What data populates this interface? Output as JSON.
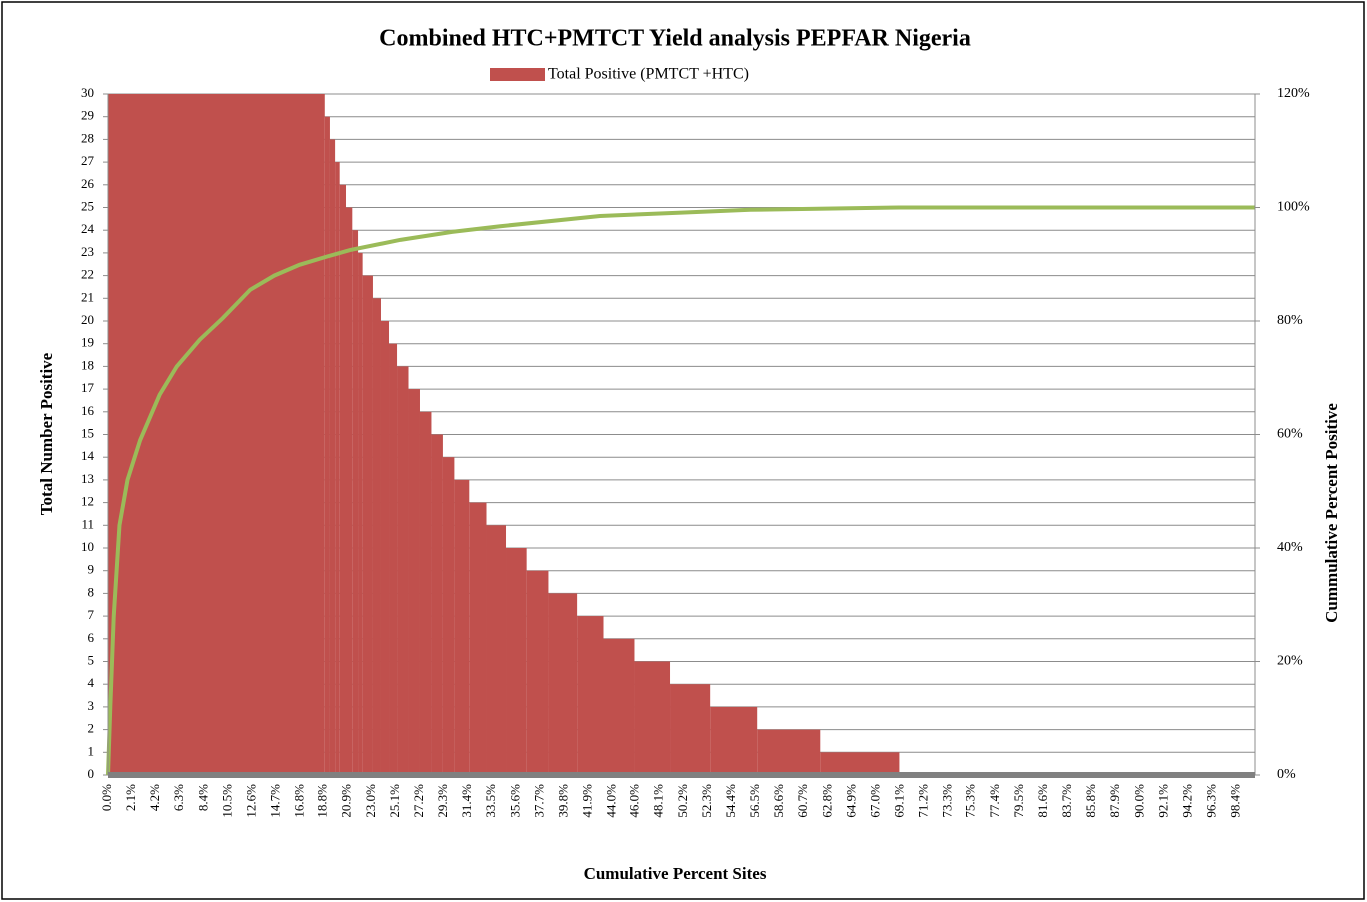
{
  "chart_data": {
    "type": "step",
    "title": "Combined HTC+PMTCT Yield analysis PEPFAR Nigeria",
    "xlabel": "Cumulative Percent Sites",
    "ylabel": "Total Number Positive",
    "y2label": "Cummulative Percent Positive",
    "xlim": [
      0,
      100
    ],
    "ylim": [
      0,
      30
    ],
    "y2lim": [
      0,
      120
    ],
    "grid": true,
    "legend": "top",
    "yticks": [
      0,
      1,
      2,
      3,
      4,
      5,
      6,
      7,
      8,
      9,
      10,
      11,
      12,
      13,
      14,
      15,
      16,
      17,
      18,
      19,
      20,
      21,
      22,
      23,
      24,
      25,
      26,
      27,
      28,
      29,
      30
    ],
    "y2ticks": [
      {
        "value": 0,
        "label": "0%"
      },
      {
        "value": 20,
        "label": "20%"
      },
      {
        "value": 40,
        "label": "40%"
      },
      {
        "value": 60,
        "label": "60%"
      },
      {
        "value": 80,
        "label": "80%"
      },
      {
        "value": 100,
        "label": "100%"
      },
      {
        "value": 120,
        "label": "120%"
      }
    ],
    "xticks": [
      {
        "value": 0,
        "label": "0.0%"
      },
      {
        "value": 2.1,
        "label": "2.1%"
      },
      {
        "value": 4.2,
        "label": "4.2%"
      },
      {
        "value": 6.3,
        "label": "6.3%"
      },
      {
        "value": 8.4,
        "label": "8.4%"
      },
      {
        "value": 10.5,
        "label": "10.5%"
      },
      {
        "value": 12.6,
        "label": "12.6%"
      },
      {
        "value": 14.7,
        "label": "14.7%"
      },
      {
        "value": 16.8,
        "label": "16.8%"
      },
      {
        "value": 18.8,
        "label": "18.8%"
      },
      {
        "value": 20.9,
        "label": "20.9%"
      },
      {
        "value": 23.0,
        "label": "23.0%"
      },
      {
        "value": 25.1,
        "label": "25.1%"
      },
      {
        "value": 27.2,
        "label": "27.2%"
      },
      {
        "value": 29.3,
        "label": "29.3%"
      },
      {
        "value": 31.4,
        "label": "31.4%"
      },
      {
        "value": 33.5,
        "label": "33.5%"
      },
      {
        "value": 35.6,
        "label": "35.6%"
      },
      {
        "value": 37.7,
        "label": "37.7%"
      },
      {
        "value": 39.8,
        "label": "39.8%"
      },
      {
        "value": 41.9,
        "label": "41.9%"
      },
      {
        "value": 44.0,
        "label": "44.0%"
      },
      {
        "value": 46.0,
        "label": "46.0%"
      },
      {
        "value": 48.1,
        "label": "48.1%"
      },
      {
        "value": 50.2,
        "label": "50.2%"
      },
      {
        "value": 52.3,
        "label": "52.3%"
      },
      {
        "value": 54.4,
        "label": "54.4%"
      },
      {
        "value": 56.5,
        "label": "56.5%"
      },
      {
        "value": 58.6,
        "label": "58.6%"
      },
      {
        "value": 60.7,
        "label": "60.7%"
      },
      {
        "value": 62.8,
        "label": "62.8%"
      },
      {
        "value": 64.9,
        "label": "64.9%"
      },
      {
        "value": 67.0,
        "label": "67.0%"
      },
      {
        "value": 69.1,
        "label": "69.1%"
      },
      {
        "value": 71.2,
        "label": "71.2%"
      },
      {
        "value": 73.3,
        "label": "73.3%"
      },
      {
        "value": 75.3,
        "label": "75.3%"
      },
      {
        "value": 77.4,
        "label": "77.4%"
      },
      {
        "value": 79.5,
        "label": "79.5%"
      },
      {
        "value": 81.6,
        "label": "81.6%"
      },
      {
        "value": 83.7,
        "label": "83.7%"
      },
      {
        "value": 85.8,
        "label": "85.8%"
      },
      {
        "value": 87.9,
        "label": "87.9%"
      },
      {
        "value": 90.0,
        "label": "90.0%"
      },
      {
        "value": 92.1,
        "label": "92.1%"
      },
      {
        "value": 94.2,
        "label": "94.2%"
      },
      {
        "value": 96.3,
        "label": "96.3%"
      },
      {
        "value": 98.4,
        "label": "98.4%"
      }
    ],
    "series": [
      {
        "name": "Total Positive (PMTCT +HTC)",
        "color": "#c0504d",
        "x": [
          0,
          18.9,
          19.35,
          19.8,
          20.2,
          20.75,
          21.3,
          21.8,
          22.2,
          23.1,
          23.8,
          24.5,
          25.2,
          26.2,
          27.2,
          28.2,
          29.2,
          30.2,
          31.5,
          33.0,
          34.7,
          36.5,
          38.4,
          40.9,
          43.2,
          45.9,
          49.0,
          52.5,
          56.6,
          62.1,
          69.0
        ],
        "values": [
          30,
          29,
          28,
          27,
          26,
          25,
          24,
          23,
          22,
          21,
          20,
          19,
          18,
          17,
          16,
          15,
          14,
          13,
          12,
          11,
          10,
          9,
          8,
          7,
          6,
          5,
          4,
          3,
          2,
          1,
          0
        ]
      },
      {
        "color": "#9bbb59",
        "axis": "y2",
        "x": [
          0,
          0.2,
          0.5,
          1.0,
          1.7,
          2.8,
          4.5,
          6.0,
          8.0,
          10.0,
          12.4,
          14.5,
          16.7,
          19.0,
          21.1,
          25.5,
          30.0,
          34.2,
          42.9,
          50.0,
          56.0,
          69.0,
          80.0,
          100
        ],
        "values": [
          0,
          12,
          28,
          44,
          52,
          59,
          67,
          72,
          76.7,
          80.5,
          85.5,
          88,
          89.9,
          91.3,
          92.5,
          94.3,
          95.7,
          96.7,
          98.5,
          99.1,
          99.6,
          100,
          100,
          100
        ]
      }
    ]
  }
}
